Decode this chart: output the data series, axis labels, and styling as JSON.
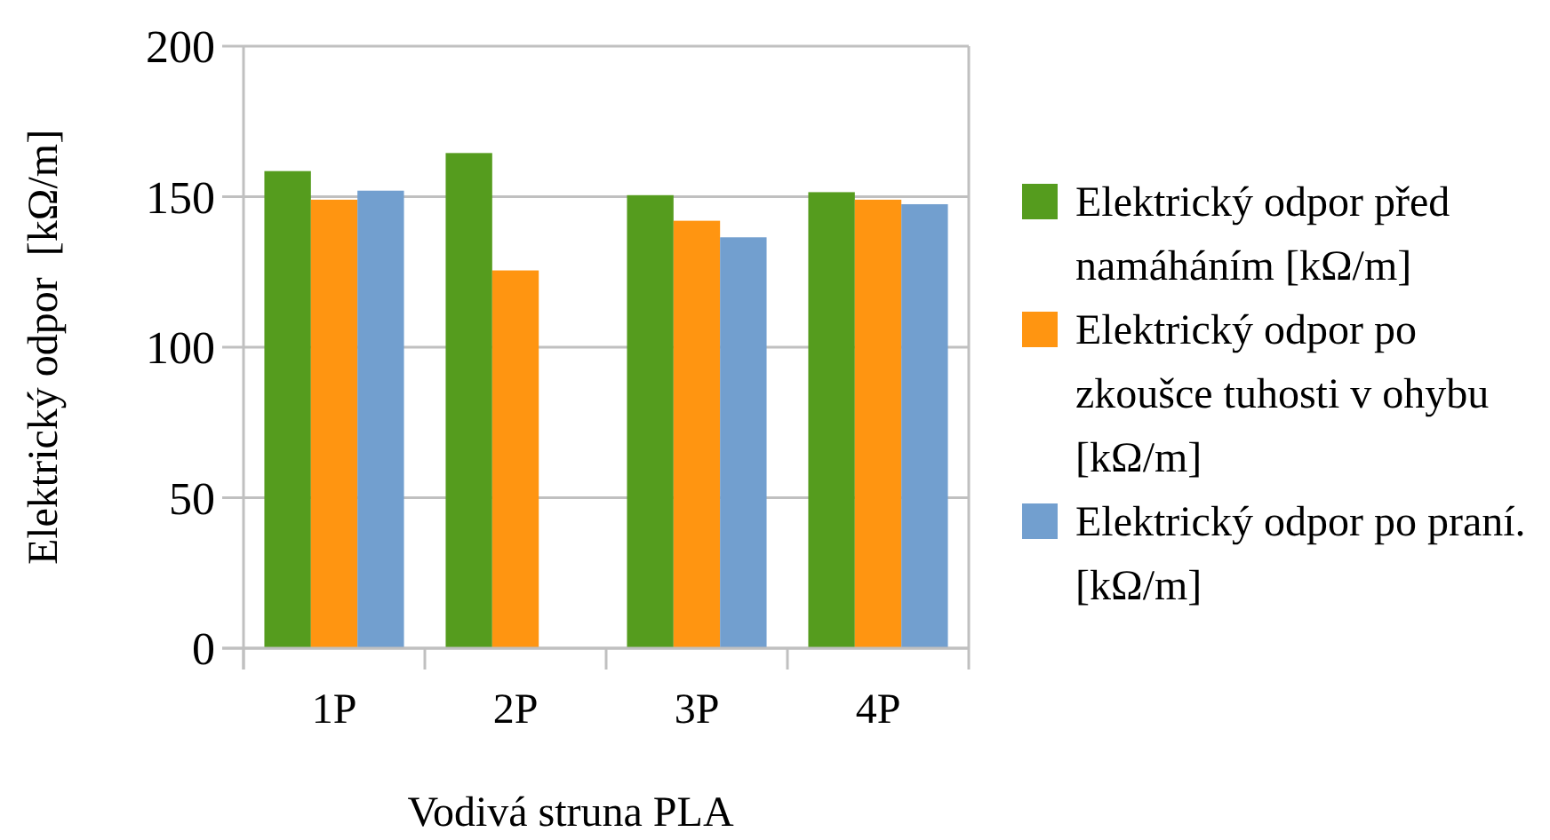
{
  "chart_data": {
    "type": "bar",
    "xlabel": "Vodivá struna PLA",
    "ylabel": "Elektrický odpor  [kΩ/m]",
    "categories": [
      "1P",
      "2P",
      "3P",
      "4P"
    ],
    "series": [
      {
        "name": "Elektrický odpor před namáháním [kΩ/m]",
        "color": "#559c1e",
        "values": [
          158.5,
          164.5,
          150.5,
          151.5
        ]
      },
      {
        "name": "Elektrický odpor po zkoušce tuhosti v ohybu [kΩ/m]",
        "color": "#ff9511",
        "values": [
          149,
          125.5,
          142,
          149
        ]
      },
      {
        "name": "Elektrický odpor po praní. [kΩ/m]",
        "color": "#729fcf",
        "values": [
          152,
          null,
          136.5,
          147.5
        ]
      }
    ],
    "ylim": [
      0,
      200
    ],
    "yticks": [
      0,
      50,
      100,
      150,
      200
    ],
    "grid": "y",
    "legend": "right"
  }
}
